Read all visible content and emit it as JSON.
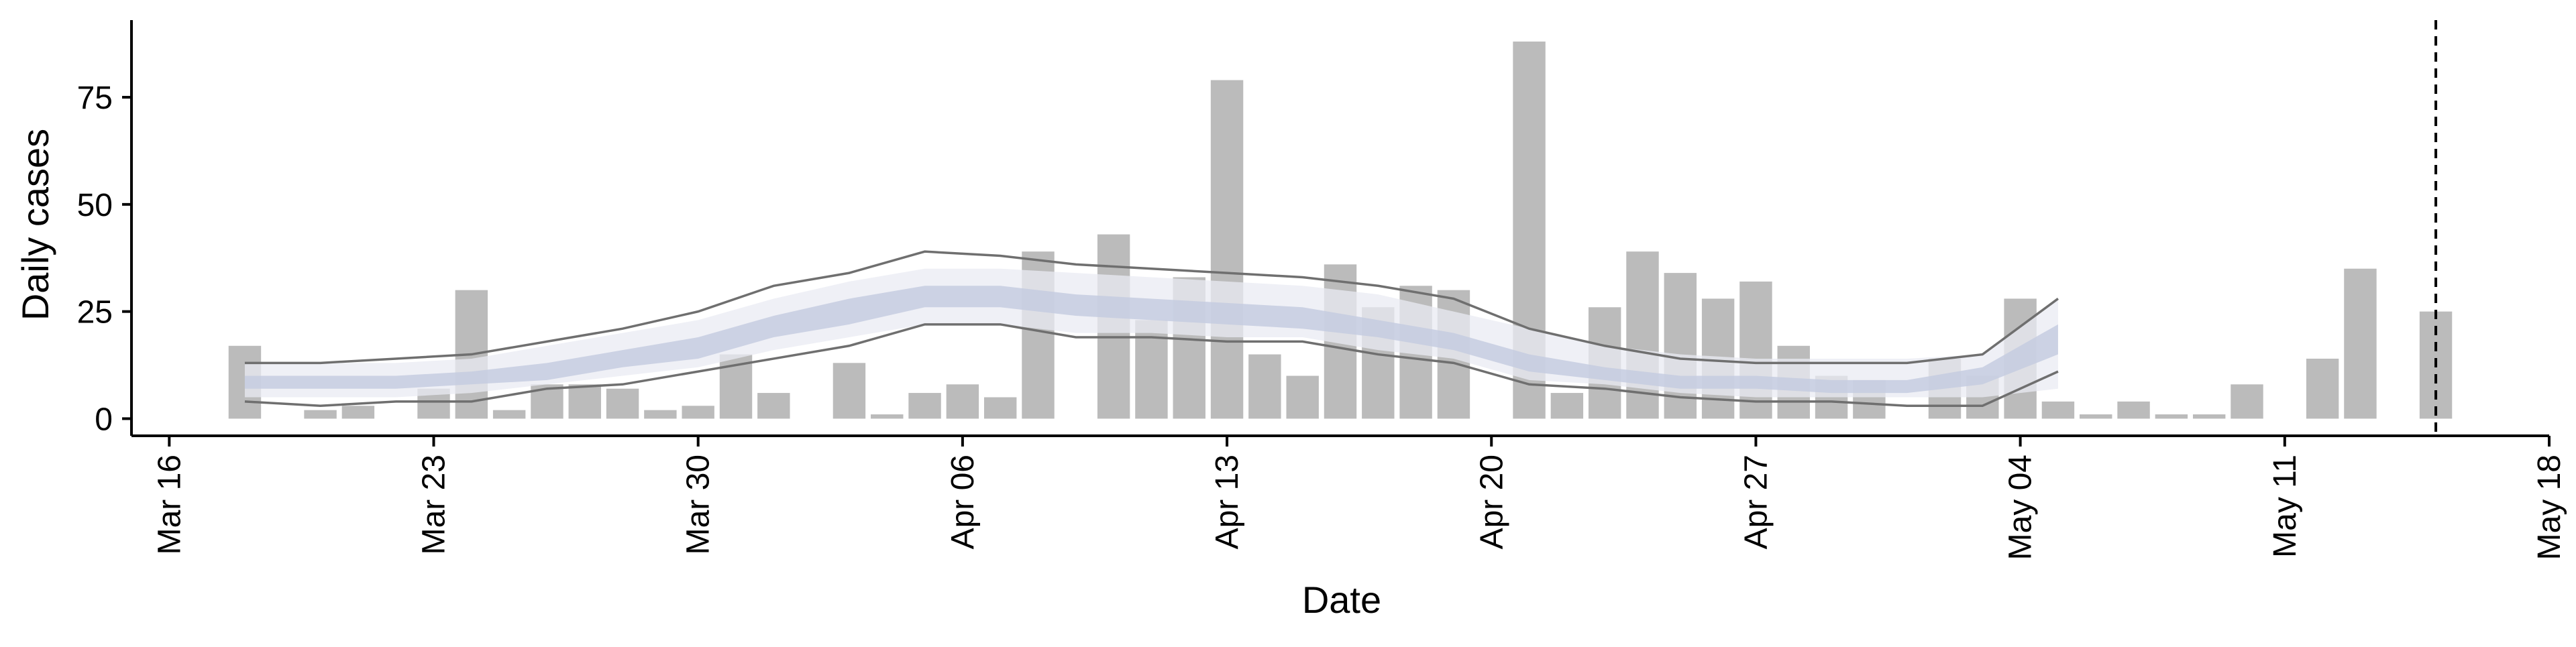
{
  "chart_data": {
    "type": "bar",
    "xlabel": "Date",
    "ylabel": "Daily cases",
    "x_ticks": [
      "Mar 16",
      "Mar 23",
      "Mar 30",
      "Apr 06",
      "Apr 13",
      "Apr 20",
      "Apr 27",
      "May 04",
      "May 11",
      "May 18"
    ],
    "y_ticks": [
      "0",
      "25",
      "50",
      "75"
    ],
    "xlim": [
      "2020-03-15",
      "2020-05-18"
    ],
    "ylim": [
      -4,
      93
    ],
    "grid": false,
    "bars": {
      "dates": [
        "2020-03-18",
        "2020-03-19",
        "2020-03-20",
        "2020-03-21",
        "2020-03-22",
        "2020-03-23",
        "2020-03-24",
        "2020-03-25",
        "2020-03-26",
        "2020-03-27",
        "2020-03-28",
        "2020-03-29",
        "2020-03-30",
        "2020-03-31",
        "2020-04-01",
        "2020-04-02",
        "2020-04-03",
        "2020-04-04",
        "2020-04-05",
        "2020-04-06",
        "2020-04-07",
        "2020-04-08",
        "2020-04-09",
        "2020-04-10",
        "2020-04-11",
        "2020-04-12",
        "2020-04-13",
        "2020-04-14",
        "2020-04-15",
        "2020-04-16",
        "2020-04-17",
        "2020-04-18",
        "2020-04-19",
        "2020-04-20",
        "2020-04-21",
        "2020-04-22",
        "2020-04-23",
        "2020-04-24",
        "2020-04-25",
        "2020-04-26",
        "2020-04-27",
        "2020-04-28",
        "2020-04-29",
        "2020-04-30",
        "2020-05-01",
        "2020-05-02",
        "2020-05-03",
        "2020-05-04",
        "2020-05-05",
        "2020-05-06",
        "2020-05-07",
        "2020-05-08",
        "2020-05-09",
        "2020-05-10",
        "2020-05-11",
        "2020-05-12",
        "2020-05-13",
        "2020-05-14",
        "2020-05-15"
      ],
      "values": [
        17,
        0,
        2,
        3,
        0,
        7,
        30,
        2,
        8,
        8,
        7,
        2,
        3,
        15,
        6,
        0,
        13,
        1,
        6,
        8,
        5,
        39,
        0,
        43,
        23,
        33,
        79,
        15,
        10,
        36,
        26,
        31,
        30,
        0,
        88,
        6,
        26,
        39,
        34,
        28,
        32,
        17,
        10,
        9,
        0,
        14,
        10,
        28,
        4,
        1,
        4,
        1,
        1,
        8,
        0,
        14,
        35,
        0,
        25
      ],
      "color": "#bbbbbb"
    },
    "lines": {
      "dates": [
        "2020-03-18",
        "2020-03-20",
        "2020-03-22",
        "2020-03-24",
        "2020-03-26",
        "2020-03-28",
        "2020-03-30",
        "2020-04-01",
        "2020-04-03",
        "2020-04-05",
        "2020-04-07",
        "2020-04-09",
        "2020-04-11",
        "2020-04-13",
        "2020-04-15",
        "2020-04-17",
        "2020-04-19",
        "2020-04-21",
        "2020-04-23",
        "2020-04-25",
        "2020-04-27",
        "2020-04-29",
        "2020-05-01",
        "2020-05-03",
        "2020-05-05"
      ],
      "upper": [
        13,
        13,
        14,
        15,
        18,
        21,
        25,
        31,
        34,
        39,
        38,
        36,
        35,
        34,
        33,
        31,
        28,
        21,
        17,
        14,
        13,
        13,
        13,
        15,
        28
      ],
      "lower": [
        4,
        3,
        4,
        4,
        7,
        8,
        11,
        14,
        17,
        22,
        22,
        19,
        19,
        18,
        18,
        15,
        13,
        8,
        7,
        5,
        4,
        4,
        3,
        3,
        11
      ],
      "color": "#6f6f6f"
    },
    "outer_band": {
      "dates": [
        "2020-03-18",
        "2020-03-20",
        "2020-03-22",
        "2020-03-24",
        "2020-03-26",
        "2020-03-28",
        "2020-03-30",
        "2020-04-01",
        "2020-04-03",
        "2020-04-05",
        "2020-04-07",
        "2020-04-09",
        "2020-04-11",
        "2020-04-13",
        "2020-04-15",
        "2020-04-17",
        "2020-04-19",
        "2020-04-21",
        "2020-04-23",
        "2020-04-25",
        "2020-04-27",
        "2020-04-29",
        "2020-05-01",
        "2020-05-03",
        "2020-05-05"
      ],
      "upper": [
        13,
        13,
        13,
        14,
        17,
        20,
        23,
        28,
        32,
        35,
        35,
        34,
        33,
        32,
        31,
        29,
        25,
        21,
        17,
        15,
        14,
        14,
        14,
        15,
        28
      ],
      "lower": [
        5,
        5,
        5,
        6,
        8,
        10,
        12,
        16,
        19,
        22,
        22,
        20,
        20,
        19,
        19,
        16,
        14,
        9,
        8,
        6,
        5,
        5,
        5,
        5,
        7
      ],
      "color": "#e9ebf3"
    },
    "inner_band": {
      "dates": [
        "2020-03-18",
        "2020-03-20",
        "2020-03-22",
        "2020-03-24",
        "2020-03-26",
        "2020-03-28",
        "2020-03-30",
        "2020-04-01",
        "2020-04-03",
        "2020-04-05",
        "2020-04-07",
        "2020-04-09",
        "2020-04-11",
        "2020-04-13",
        "2020-04-15",
        "2020-04-17",
        "2020-04-19",
        "2020-04-21",
        "2020-04-23",
        "2020-04-25",
        "2020-04-27",
        "2020-04-29",
        "2020-05-01",
        "2020-05-03",
        "2020-05-05"
      ],
      "upper": [
        10,
        10,
        10,
        11,
        13,
        16,
        19,
        24,
        28,
        31,
        31,
        29,
        28,
        27,
        26,
        23,
        20,
        15,
        12,
        10,
        10,
        9,
        9,
        12,
        22
      ],
      "lower": [
        7,
        7,
        7,
        8,
        9,
        12,
        14,
        19,
        22,
        26,
        26,
        24,
        23,
        22,
        21,
        19,
        16,
        11,
        9,
        7,
        7,
        6,
        6,
        8,
        15
      ],
      "color": "#c6cce0"
    },
    "reference_line_date": "2020-05-15"
  }
}
